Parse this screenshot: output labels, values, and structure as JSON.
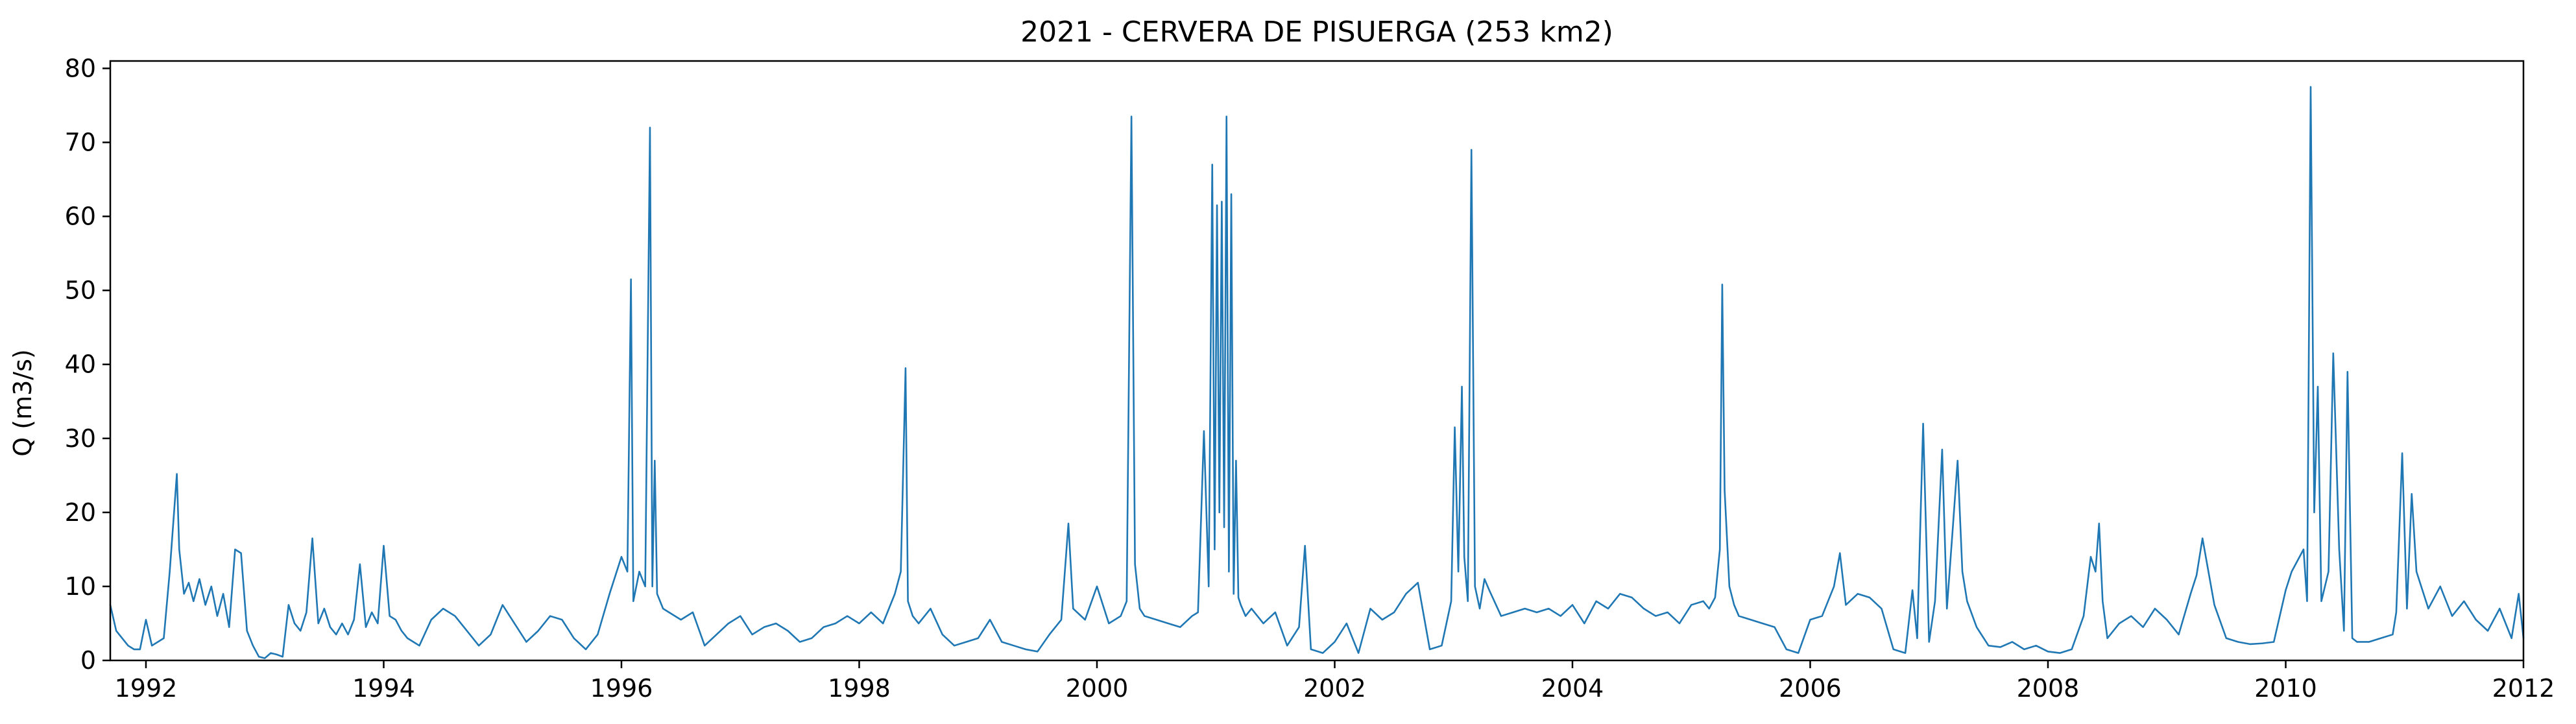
{
  "chart_data": {
    "type": "line",
    "title": "2021 - CERVERA DE PISUERGA (253 km2)",
    "xlabel": "",
    "ylabel": "Q (m3/s)",
    "xlim": [
      1991.7,
      2012.0
    ],
    "ylim": [
      0,
      81
    ],
    "grid": false,
    "legend": "none",
    "x_ticks": [
      1992,
      1994,
      1996,
      1998,
      2000,
      2002,
      2004,
      2006,
      2008,
      2010,
      2012
    ],
    "x_tick_labels": [
      "1992",
      "1994",
      "1996",
      "1998",
      "2000",
      "2002",
      "2004",
      "2006",
      "2008",
      "2010",
      "2012"
    ],
    "y_ticks": [
      0,
      10,
      20,
      30,
      40,
      50,
      60,
      70,
      80
    ],
    "y_tick_labels": [
      "0",
      "10",
      "20",
      "30",
      "40",
      "50",
      "60",
      "70",
      "80"
    ],
    "series": [
      {
        "color": "#1f77b4",
        "x": [
          1991.7,
          1991.75,
          1991.8,
          1991.85,
          1991.9,
          1991.95,
          1992.0,
          1992.05,
          1992.1,
          1992.15,
          1992.2,
          1992.26,
          1992.28,
          1992.32,
          1992.36,
          1992.4,
          1992.45,
          1992.5,
          1992.55,
          1992.6,
          1992.65,
          1992.7,
          1992.75,
          1992.8,
          1992.85,
          1992.9,
          1992.95,
          1993.0,
          1993.05,
          1993.1,
          1993.15,
          1993.2,
          1993.25,
          1993.3,
          1993.35,
          1993.4,
          1993.45,
          1993.5,
          1993.55,
          1993.6,
          1993.65,
          1993.7,
          1993.75,
          1993.8,
          1993.85,
          1993.9,
          1993.95,
          1994.0,
          1994.05,
          1994.1,
          1994.15,
          1994.2,
          1994.3,
          1994.4,
          1994.5,
          1994.6,
          1994.7,
          1994.8,
          1994.9,
          1995.0,
          1995.1,
          1995.2,
          1995.3,
          1995.4,
          1995.5,
          1995.6,
          1995.7,
          1995.8,
          1995.9,
          1996.0,
          1996.05,
          1996.08,
          1996.1,
          1996.15,
          1996.2,
          1996.24,
          1996.26,
          1996.28,
          1996.3,
          1996.35,
          1996.4,
          1996.5,
          1996.6,
          1996.7,
          1996.8,
          1996.9,
          1997.0,
          1997.1,
          1997.2,
          1997.3,
          1997.4,
          1997.5,
          1997.6,
          1997.7,
          1997.8,
          1997.9,
          1998.0,
          1998.1,
          1998.2,
          1998.3,
          1998.35,
          1998.39,
          1998.41,
          1998.45,
          1998.5,
          1998.6,
          1998.7,
          1998.8,
          1998.9,
          1999.0,
          1999.1,
          1999.2,
          1999.3,
          1999.4,
          1999.5,
          1999.6,
          1999.7,
          1999.76,
          1999.8,
          1999.9,
          2000.0,
          2000.1,
          2000.2,
          2000.25,
          2000.29,
          2000.32,
          2000.36,
          2000.4,
          2000.5,
          2000.6,
          2000.7,
          2000.8,
          2000.85,
          2000.9,
          2000.94,
          2000.97,
          2000.99,
          2001.01,
          2001.03,
          2001.05,
          2001.07,
          2001.09,
          2001.11,
          2001.13,
          2001.15,
          2001.17,
          2001.19,
          2001.21,
          2001.25,
          2001.3,
          2001.4,
          2001.5,
          2001.6,
          2001.7,
          2001.75,
          2001.8,
          2001.9,
          2002.0,
          2002.1,
          2002.2,
          2002.3,
          2002.4,
          2002.5,
          2002.6,
          2002.7,
          2002.8,
          2002.9,
          2002.98,
          2003.01,
          2003.04,
          2003.07,
          2003.09,
          2003.12,
          2003.15,
          2003.18,
          2003.22,
          2003.26,
          2003.3,
          2003.4,
          2003.5,
          2003.6,
          2003.7,
          2003.8,
          2003.9,
          2004.0,
          2004.1,
          2004.2,
          2004.3,
          2004.4,
          2004.5,
          2004.6,
          2004.7,
          2004.8,
          2004.9,
          2005.0,
          2005.1,
          2005.15,
          2005.2,
          2005.24,
          2005.26,
          2005.28,
          2005.32,
          2005.36,
          2005.4,
          2005.5,
          2005.6,
          2005.7,
          2005.8,
          2005.9,
          2006.0,
          2006.1,
          2006.2,
          2006.25,
          2006.3,
          2006.4,
          2006.5,
          2006.6,
          2006.7,
          2006.8,
          2006.86,
          2006.9,
          2006.95,
          2007.0,
          2007.05,
          2007.11,
          2007.15,
          2007.2,
          2007.24,
          2007.28,
          2007.32,
          2007.4,
          2007.5,
          2007.6,
          2007.7,
          2007.8,
          2007.9,
          2008.0,
          2008.1,
          2008.2,
          2008.3,
          2008.36,
          2008.4,
          2008.43,
          2008.46,
          2008.5,
          2008.6,
          2008.7,
          2008.8,
          2008.9,
          2009.0,
          2009.1,
          2009.2,
          2009.25,
          2009.3,
          2009.4,
          2009.5,
          2009.6,
          2009.7,
          2009.8,
          2009.9,
          2009.95,
          2010.0,
          2010.05,
          2010.1,
          2010.15,
          2010.18,
          2010.21,
          2010.24,
          2010.27,
          2010.3,
          2010.36,
          2010.4,
          2010.45,
          2010.49,
          2010.52,
          2010.56,
          2010.6,
          2010.7,
          2010.8,
          2010.9,
          2010.93,
          2010.98,
          2011.02,
          2011.06,
          2011.1,
          2011.2,
          2011.3,
          2011.4,
          2011.5,
          2011.6,
          2011.7,
          2011.8,
          2011.9,
          2011.96,
          2012.0
        ],
        "y": [
          7.5,
          4.0,
          3.0,
          2.0,
          1.5,
          1.5,
          5.5,
          2.0,
          2.5,
          3.0,
          12.0,
          25.2,
          15.0,
          9.0,
          10.5,
          8.0,
          11.0,
          7.5,
          10.0,
          6.0,
          9.0,
          4.5,
          15.0,
          14.5,
          4.0,
          2.0,
          0.5,
          0.3,
          1.0,
          0.8,
          0.5,
          7.5,
          5.0,
          4.0,
          6.5,
          16.5,
          5.0,
          7.0,
          4.5,
          3.5,
          5.0,
          3.5,
          5.5,
          13.0,
          4.5,
          6.5,
          5.0,
          15.5,
          6.0,
          5.5,
          4.0,
          3.0,
          2.0,
          5.5,
          7.0,
          6.0,
          4.0,
          2.0,
          3.5,
          7.5,
          5.0,
          2.5,
          4.0,
          6.0,
          5.5,
          3.0,
          1.5,
          3.5,
          9.0,
          14.0,
          12.0,
          51.5,
          8.0,
          12.0,
          10.0,
          72.0,
          10.0,
          27.0,
          9.0,
          7.0,
          6.5,
          5.5,
          6.5,
          2.0,
          3.5,
          5.0,
          6.0,
          3.5,
          4.5,
          5.0,
          4.0,
          2.5,
          3.0,
          4.5,
          5.0,
          6.0,
          5.0,
          6.5,
          5.0,
          9.0,
          12.0,
          39.5,
          8.0,
          6.0,
          5.0,
          7.0,
          3.5,
          2.0,
          2.5,
          3.0,
          5.5,
          2.5,
          2.0,
          1.5,
          1.2,
          3.5,
          5.5,
          18.5,
          7.0,
          5.5,
          10.0,
          5.0,
          6.0,
          8.0,
          73.5,
          13.0,
          7.0,
          6.0,
          5.5,
          5.0,
          4.5,
          6.0,
          6.5,
          31.0,
          10.0,
          67.0,
          15.0,
          61.5,
          20.0,
          62.0,
          18.0,
          73.5,
          12.0,
          63.0,
          9.0,
          27.0,
          8.5,
          7.5,
          6.0,
          7.0,
          5.0,
          6.5,
          2.0,
          4.5,
          15.5,
          1.5,
          1.0,
          2.5,
          5.0,
          1.0,
          7.0,
          5.5,
          6.5,
          9.0,
          10.5,
          1.5,
          2.0,
          8.0,
          31.5,
          12.0,
          37.0,
          14.0,
          8.0,
          69.0,
          10.0,
          7.0,
          11.0,
          9.5,
          6.0,
          6.5,
          7.0,
          6.5,
          7.0,
          6.0,
          7.5,
          5.0,
          8.0,
          7.0,
          9.0,
          8.5,
          7.0,
          6.0,
          6.5,
          5.0,
          7.5,
          8.0,
          7.0,
          8.5,
          15.0,
          50.8,
          23.0,
          10.0,
          7.5,
          6.0,
          5.5,
          5.0,
          4.5,
          1.5,
          1.0,
          5.5,
          6.0,
          10.0,
          14.5,
          7.5,
          9.0,
          8.5,
          7.0,
          1.5,
          1.0,
          9.5,
          3.0,
          32.0,
          2.5,
          8.0,
          28.5,
          7.0,
          18.0,
          27.0,
          12.0,
          8.0,
          4.5,
          2.0,
          1.8,
          2.5,
          1.5,
          2.0,
          1.2,
          1.0,
          1.5,
          6.0,
          14.0,
          12.0,
          18.5,
          8.0,
          3.0,
          5.0,
          6.0,
          4.5,
          7.0,
          5.5,
          3.5,
          9.0,
          11.5,
          16.5,
          7.5,
          3.0,
          2.5,
          2.2,
          2.3,
          2.5,
          6.0,
          9.5,
          12.0,
          13.5,
          15.0,
          8.0,
          77.5,
          20.0,
          37.0,
          8.0,
          12.0,
          41.5,
          15.0,
          4.0,
          39.0,
          3.0,
          2.5,
          2.5,
          3.0,
          3.5,
          6.5,
          28.0,
          7.0,
          22.5,
          12.0,
          7.0,
          10.0,
          6.0,
          8.0,
          5.5,
          4.0,
          7.0,
          3.0,
          9.0,
          3.0
        ]
      }
    ]
  }
}
